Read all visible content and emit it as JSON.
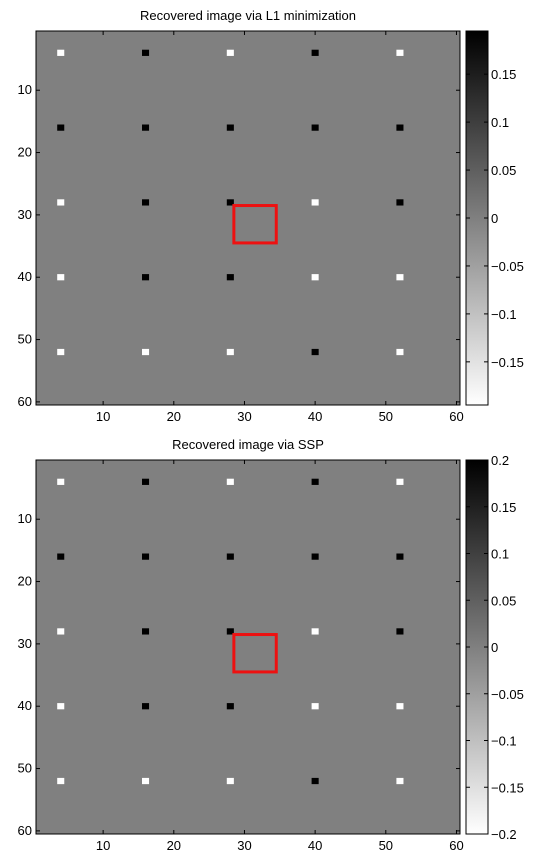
{
  "chart_data": [
    {
      "type": "heatmap",
      "title": "Recovered image via L1 minimization",
      "xlim": [
        0.5,
        60.5
      ],
      "ylim": [
        0.5,
        60.5
      ],
      "y_reversed": true,
      "xticks": [
        10,
        20,
        30,
        40,
        50,
        60
      ],
      "yticks": [
        10,
        20,
        30,
        40,
        50,
        60
      ],
      "background_value": 0,
      "colormap": "gray-reversed",
      "clim": [
        -0.195,
        0.195
      ],
      "colorbar_ticks": [
        {
          "label": "0.15",
          "value": 0.15
        },
        {
          "label": "0.1",
          "value": 0.1
        },
        {
          "label": "0.05",
          "value": 0.05
        },
        {
          "label": "0",
          "value": 0
        },
        {
          "label": "−0.05",
          "value": -0.05
        },
        {
          "label": "−0.1",
          "value": -0.1
        },
        {
          "label": "−0.15",
          "value": -0.15
        }
      ],
      "spikes": [
        {
          "x": 4,
          "y": 4,
          "value": -0.195
        },
        {
          "x": 16,
          "y": 4,
          "value": 0.195
        },
        {
          "x": 28,
          "y": 4,
          "value": -0.195
        },
        {
          "x": 40,
          "y": 4,
          "value": 0.195
        },
        {
          "x": 52,
          "y": 4,
          "value": -0.195
        },
        {
          "x": 4,
          "y": 16,
          "value": 0.195
        },
        {
          "x": 16,
          "y": 16,
          "value": 0.195
        },
        {
          "x": 28,
          "y": 16,
          "value": 0.195
        },
        {
          "x": 40,
          "y": 16,
          "value": 0.195
        },
        {
          "x": 52,
          "y": 16,
          "value": 0.195
        },
        {
          "x": 4,
          "y": 28,
          "value": -0.195
        },
        {
          "x": 16,
          "y": 28,
          "value": 0.195
        },
        {
          "x": 28,
          "y": 28,
          "value": 0.195
        },
        {
          "x": 40,
          "y": 28,
          "value": -0.195
        },
        {
          "x": 52,
          "y": 28,
          "value": 0.195
        },
        {
          "x": 4,
          "y": 40,
          "value": -0.195
        },
        {
          "x": 16,
          "y": 40,
          "value": 0.195
        },
        {
          "x": 28,
          "y": 40,
          "value": 0.195
        },
        {
          "x": 40,
          "y": 40,
          "value": -0.195
        },
        {
          "x": 52,
          "y": 40,
          "value": -0.195
        },
        {
          "x": 4,
          "y": 52,
          "value": -0.195
        },
        {
          "x": 16,
          "y": 52,
          "value": -0.195
        },
        {
          "x": 28,
          "y": 52,
          "value": -0.195
        },
        {
          "x": 40,
          "y": 52,
          "value": 0.195
        },
        {
          "x": 52,
          "y": 52,
          "value": -0.195
        }
      ],
      "highlight_box": {
        "x_range": [
          29,
          34
        ],
        "y_range": [
          29,
          34
        ],
        "color": "#ee1111"
      }
    },
    {
      "type": "heatmap",
      "title": "Recovered image via SSP",
      "xlim": [
        0.5,
        60.5
      ],
      "ylim": [
        0.5,
        60.5
      ],
      "y_reversed": true,
      "xticks": [
        10,
        20,
        30,
        40,
        50,
        60
      ],
      "yticks": [
        10,
        20,
        30,
        40,
        50,
        60
      ],
      "background_value": 0,
      "colormap": "gray-reversed",
      "clim": [
        -0.2,
        0.2
      ],
      "colorbar_ticks": [
        {
          "label": "0.2",
          "value": 0.2
        },
        {
          "label": "0.15",
          "value": 0.15
        },
        {
          "label": "0.1",
          "value": 0.1
        },
        {
          "label": "0.05",
          "value": 0.05
        },
        {
          "label": "0",
          "value": 0
        },
        {
          "label": "−0.05",
          "value": -0.05
        },
        {
          "label": "−0.1",
          "value": -0.1
        },
        {
          "label": "−0.15",
          "value": -0.15
        },
        {
          "label": "−0.2",
          "value": -0.2
        }
      ],
      "spikes": [
        {
          "x": 4,
          "y": 4,
          "value": -0.2
        },
        {
          "x": 16,
          "y": 4,
          "value": 0.2
        },
        {
          "x": 28,
          "y": 4,
          "value": -0.2
        },
        {
          "x": 40,
          "y": 4,
          "value": 0.2
        },
        {
          "x": 52,
          "y": 4,
          "value": -0.2
        },
        {
          "x": 4,
          "y": 16,
          "value": 0.2
        },
        {
          "x": 16,
          "y": 16,
          "value": 0.2
        },
        {
          "x": 28,
          "y": 16,
          "value": 0.2
        },
        {
          "x": 40,
          "y": 16,
          "value": 0.2
        },
        {
          "x": 52,
          "y": 16,
          "value": 0.2
        },
        {
          "x": 4,
          "y": 28,
          "value": -0.2
        },
        {
          "x": 16,
          "y": 28,
          "value": 0.2
        },
        {
          "x": 28,
          "y": 28,
          "value": 0.2
        },
        {
          "x": 40,
          "y": 28,
          "value": -0.2
        },
        {
          "x": 52,
          "y": 28,
          "value": 0.2
        },
        {
          "x": 4,
          "y": 40,
          "value": -0.2
        },
        {
          "x": 16,
          "y": 40,
          "value": 0.2
        },
        {
          "x": 28,
          "y": 40,
          "value": 0.2
        },
        {
          "x": 40,
          "y": 40,
          "value": -0.2
        },
        {
          "x": 52,
          "y": 40,
          "value": -0.2
        },
        {
          "x": 4,
          "y": 52,
          "value": -0.2
        },
        {
          "x": 16,
          "y": 52,
          "value": -0.2
        },
        {
          "x": 28,
          "y": 52,
          "value": -0.2
        },
        {
          "x": 40,
          "y": 52,
          "value": 0.2
        },
        {
          "x": 52,
          "y": 52,
          "value": -0.2
        }
      ],
      "highlight_box": {
        "x_range": [
          29,
          34
        ],
        "y_range": [
          29,
          34
        ],
        "color": "#ee1111"
      }
    }
  ]
}
